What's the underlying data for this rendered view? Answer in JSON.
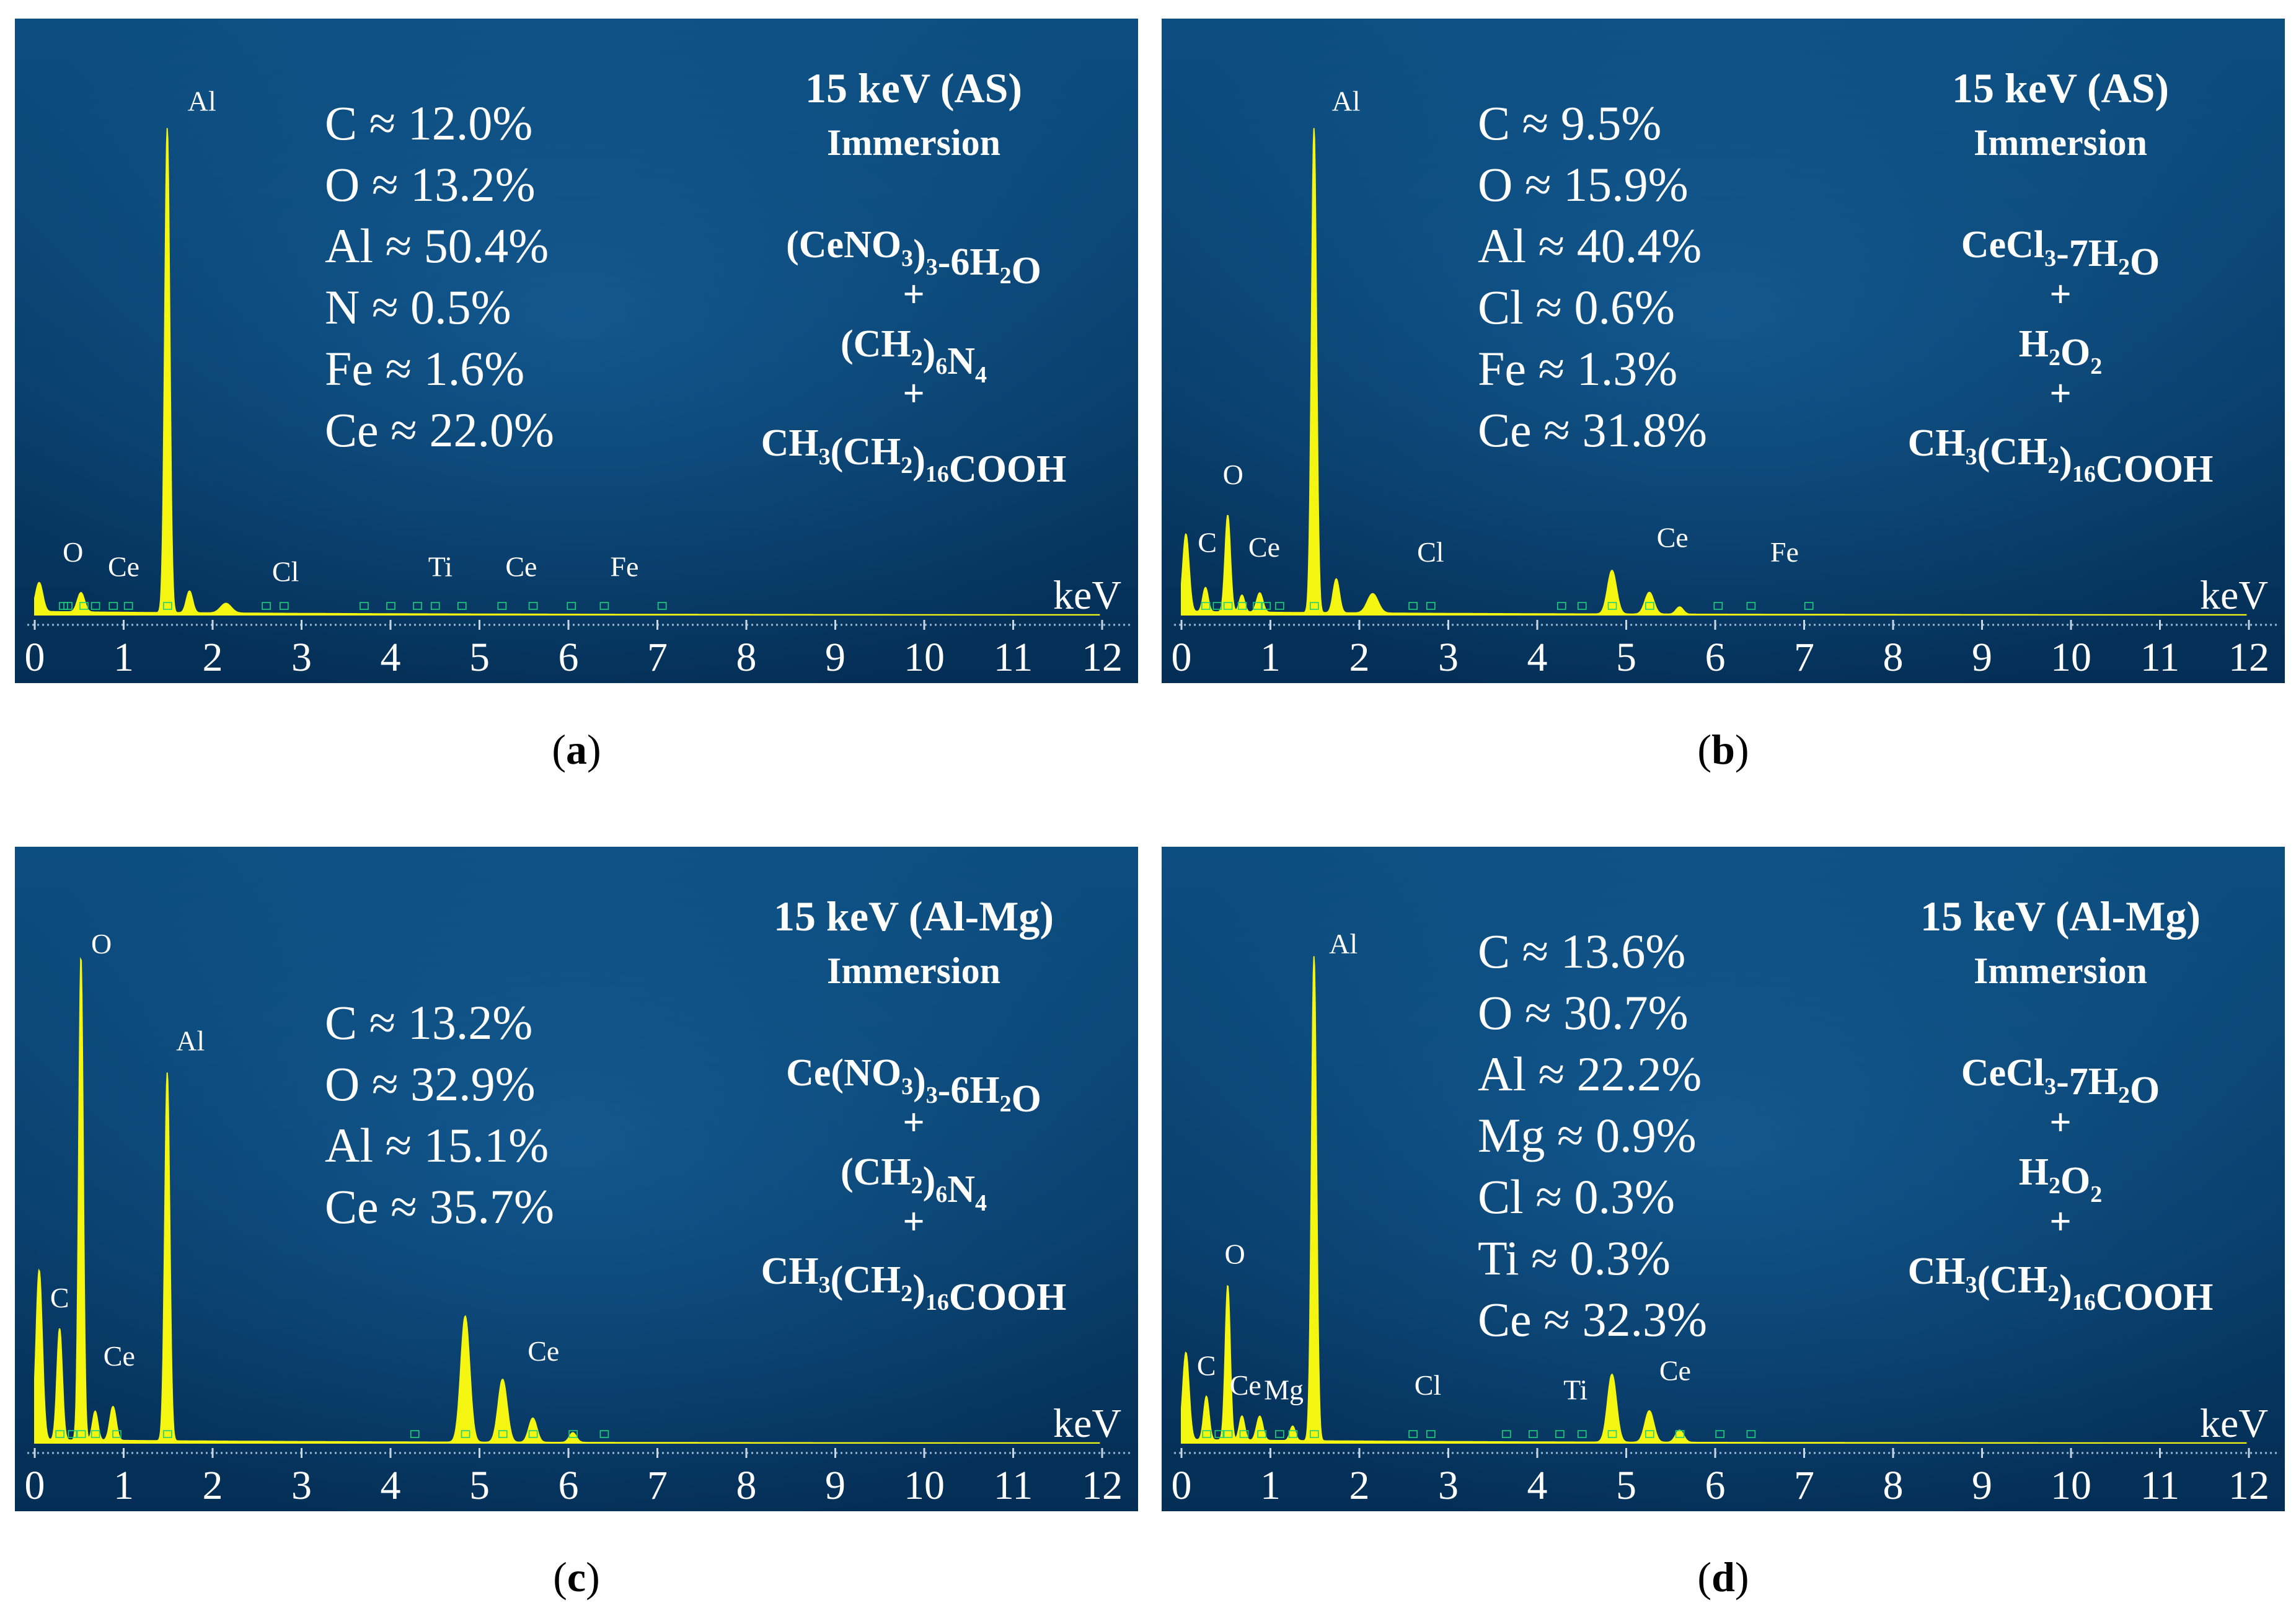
{
  "colors": {
    "bg_top": "#0d4e80",
    "bg_bottom": "#042e55",
    "spectrum": "#f4f511",
    "text": "#ffffff",
    "marker": "#1fd07a"
  },
  "panels": [
    {
      "id": "a",
      "caption": "a",
      "title": "15 keV (AS)",
      "mode": "Immersion",
      "axis_label": "keV",
      "composition": [
        "C ≈ 12.0%",
        "O ≈ 13.2%",
        "Al ≈ 50.4%",
        "N ≈ 0.5%",
        "Fe ≈ 1.6%",
        "Ce ≈ 22.0%"
      ],
      "recipe": [
        "(CeNO3)3-6H2O",
        "+",
        "(CH2)6N4",
        "+",
        "CH3(CH2)16COOH"
      ]
    },
    {
      "id": "b",
      "caption": "b",
      "title": "15 keV (AS)",
      "mode": "Immersion",
      "axis_label": "keV",
      "composition": [
        "C ≈ 9.5%",
        "O ≈ 15.9%",
        "Al ≈ 40.4%",
        "Cl ≈ 0.6%",
        "Fe ≈ 1.3%",
        "Ce ≈ 31.8%"
      ],
      "recipe": [
        "CeCl3-7H2O",
        "+",
        "H2O2",
        "+",
        "CH3(CH2)16COOH"
      ]
    },
    {
      "id": "c",
      "caption": "c",
      "title": "15 keV (Al-Mg)",
      "mode": "Immersion",
      "axis_label": "keV",
      "composition": [
        "C ≈ 13.2%",
        "O ≈ 32.9%",
        "Al ≈ 15.1%",
        "Ce ≈ 35.7%"
      ],
      "recipe": [
        "Ce(NO3)3-6H2O",
        "+",
        "(CH2)6N4",
        "+",
        "CH3(CH2)16COOH"
      ]
    },
    {
      "id": "d",
      "caption": "d",
      "title": "15 keV (Al-Mg)",
      "mode": "Immersion",
      "axis_label": "keV",
      "composition": [
        "C ≈ 13.6%",
        "O ≈ 30.7%",
        "Al ≈ 22.2%",
        "Mg ≈ 0.9%",
        "Cl ≈ 0.3%",
        "Ti ≈ 0.3%",
        "Ce ≈ 32.3%"
      ],
      "recipe": [
        "CeCl3-7H2O",
        "+",
        "H2O2",
        "+",
        "CH3(CH2)16COOH"
      ]
    }
  ],
  "chart_data": [
    {
      "type": "line",
      "title": "15 keV (AS)",
      "xlabel": "keV",
      "xlim": [
        0,
        12.5
      ],
      "ylim": [
        0,
        100
      ],
      "x_ticks": [
        "0",
        "1",
        "2",
        "3",
        "4",
        "5",
        "6",
        "7",
        "8",
        "9",
        "10",
        "11",
        "12"
      ],
      "peaks": [
        {
          "x": 0.05,
          "h": 6,
          "w": 0.04
        },
        {
          "x": 0.52,
          "h": 4,
          "w": 0.04
        },
        {
          "x": 1.49,
          "h": 100,
          "w": 0.028
        },
        {
          "x": 1.74,
          "h": 4.5,
          "w": 0.035
        },
        {
          "x": 2.15,
          "h": 2,
          "w": 0.06
        }
      ],
      "peak_labels": [
        {
          "text": "Al",
          "x": 1.88,
          "y": 104
        },
        {
          "text": "O",
          "x": 0.43,
          "y": 11
        },
        {
          "text": "Ce",
          "x": 1.0,
          "y": 8
        },
        {
          "text": "Cl",
          "x": 2.82,
          "y": 7
        },
        {
          "text": "Ti",
          "x": 4.56,
          "y": 8
        },
        {
          "text": "Ce",
          "x": 5.47,
          "y": 8
        },
        {
          "text": "Fe",
          "x": 6.63,
          "y": 8
        }
      ],
      "markers": [
        0.32,
        0.37,
        0.55,
        0.68,
        0.88,
        1.05,
        1.49,
        2.6,
        2.8,
        3.7,
        4.0,
        4.3,
        4.5,
        4.8,
        5.25,
        5.6,
        6.03,
        6.4,
        7.05
      ]
    },
    {
      "type": "line",
      "title": "15 keV (AS)",
      "xlabel": "keV",
      "xlim": [
        0,
        12.5
      ],
      "ylim": [
        0,
        100
      ],
      "x_ticks": [
        "0",
        "1",
        "2",
        "3",
        "4",
        "5",
        "6",
        "7",
        "8",
        "9",
        "10",
        "11",
        "12"
      ],
      "peaks": [
        {
          "x": 0.05,
          "h": 16,
          "w": 0.035
        },
        {
          "x": 0.27,
          "h": 5,
          "w": 0.03
        },
        {
          "x": 0.52,
          "h": 20,
          "w": 0.03
        },
        {
          "x": 0.68,
          "h": 3.5,
          "w": 0.03
        },
        {
          "x": 0.88,
          "h": 4,
          "w": 0.035
        },
        {
          "x": 1.49,
          "h": 100,
          "w": 0.028
        },
        {
          "x": 1.74,
          "h": 7,
          "w": 0.035
        },
        {
          "x": 2.15,
          "h": 4,
          "w": 0.06
        },
        {
          "x": 4.84,
          "h": 9,
          "w": 0.05
        },
        {
          "x": 5.26,
          "h": 4.5,
          "w": 0.05
        },
        {
          "x": 5.6,
          "h": 1.5,
          "w": 0.04
        }
      ],
      "peak_labels": [
        {
          "text": "Al",
          "x": 1.85,
          "y": 104
        },
        {
          "text": "O",
          "x": 0.58,
          "y": 27
        },
        {
          "text": "C",
          "x": 0.29,
          "y": 13
        },
        {
          "text": "Ce",
          "x": 0.93,
          "y": 12
        },
        {
          "text": "Cl",
          "x": 2.8,
          "y": 11
        },
        {
          "text": "Ce",
          "x": 5.52,
          "y": 14
        },
        {
          "text": "Fe",
          "x": 6.78,
          "y": 11
        }
      ],
      "markers": [
        0.27,
        0.4,
        0.52,
        0.68,
        0.85,
        0.95,
        1.1,
        1.49,
        2.6,
        2.8,
        4.27,
        4.5,
        4.84,
        5.26,
        6.03,
        6.4,
        7.05
      ]
    },
    {
      "type": "line",
      "title": "15 keV (Al-Mg)",
      "xlabel": "keV",
      "xlim": [
        0,
        12.5
      ],
      "ylim": [
        0,
        100
      ],
      "x_ticks": [
        "0",
        "1",
        "2",
        "3",
        "4",
        "5",
        "6",
        "7",
        "8",
        "9",
        "10",
        "11",
        "12"
      ],
      "peaks": [
        {
          "x": 0.05,
          "h": 35,
          "w": 0.035
        },
        {
          "x": 0.28,
          "h": 23,
          "w": 0.03
        },
        {
          "x": 0.52,
          "h": 100,
          "w": 0.025
        },
        {
          "x": 0.68,
          "h": 6,
          "w": 0.03
        },
        {
          "x": 0.88,
          "h": 7,
          "w": 0.035
        },
        {
          "x": 1.49,
          "h": 76,
          "w": 0.028
        },
        {
          "x": 4.84,
          "h": 26,
          "w": 0.05
        },
        {
          "x": 5.26,
          "h": 13,
          "w": 0.05
        },
        {
          "x": 5.6,
          "h": 5,
          "w": 0.045
        },
        {
          "x": 6.05,
          "h": 2,
          "w": 0.04
        }
      ],
      "peak_labels": [
        {
          "text": "O",
          "x": 0.75,
          "y": 101
        },
        {
          "text": "Al",
          "x": 1.75,
          "y": 81
        },
        {
          "text": "C",
          "x": 0.28,
          "y": 28
        },
        {
          "text": "Ce",
          "x": 0.95,
          "y": 16
        },
        {
          "text": "Ce",
          "x": 5.72,
          "y": 17
        }
      ],
      "markers": [
        0.28,
        0.42,
        0.52,
        0.68,
        0.92,
        1.49,
        4.27,
        4.84,
        5.26,
        5.6,
        6.05,
        6.4
      ]
    },
    {
      "type": "line",
      "title": "15 keV (Al-Mg)",
      "xlabel": "keV",
      "xlim": [
        0,
        12.5
      ],
      "ylim": [
        0,
        100
      ],
      "x_ticks": [
        "0",
        "1",
        "2",
        "3",
        "4",
        "5",
        "6",
        "7",
        "8",
        "9",
        "10",
        "11",
        "12"
      ],
      "peaks": [
        {
          "x": 0.05,
          "h": 18,
          "w": 0.035
        },
        {
          "x": 0.28,
          "h": 9,
          "w": 0.03
        },
        {
          "x": 0.52,
          "h": 32,
          "w": 0.028
        },
        {
          "x": 0.68,
          "h": 5,
          "w": 0.03
        },
        {
          "x": 0.88,
          "h": 5,
          "w": 0.035
        },
        {
          "x": 1.25,
          "h": 3,
          "w": 0.03
        },
        {
          "x": 1.49,
          "h": 100,
          "w": 0.028
        },
        {
          "x": 4.84,
          "h": 14,
          "w": 0.05
        },
        {
          "x": 5.26,
          "h": 6.5,
          "w": 0.05
        },
        {
          "x": 5.6,
          "h": 2.5,
          "w": 0.045
        }
      ],
      "peak_labels": [
        {
          "text": "Al",
          "x": 1.82,
          "y": 101
        },
        {
          "text": "O",
          "x": 0.6,
          "y": 37
        },
        {
          "text": "C",
          "x": 0.28,
          "y": 14
        },
        {
          "text": "Ce",
          "x": 0.72,
          "y": 10
        },
        {
          "text": "Mg",
          "x": 1.15,
          "y": 9
        },
        {
          "text": "Cl",
          "x": 2.77,
          "y": 10
        },
        {
          "text": "Ti",
          "x": 4.43,
          "y": 9
        },
        {
          "text": "Ce",
          "x": 5.55,
          "y": 13
        }
      ],
      "markers": [
        0.28,
        0.42,
        0.52,
        0.7,
        0.9,
        1.1,
        1.25,
        1.49,
        2.6,
        2.8,
        3.65,
        3.95,
        4.25,
        4.5,
        4.84,
        5.26,
        5.6,
        6.05,
        6.4
      ]
    }
  ]
}
